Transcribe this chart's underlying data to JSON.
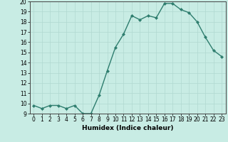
{
  "x": [
    0,
    1,
    2,
    3,
    4,
    5,
    6,
    7,
    8,
    9,
    10,
    11,
    12,
    13,
    14,
    15,
    16,
    17,
    18,
    19,
    20,
    21,
    22,
    23
  ],
  "y": [
    9.8,
    9.5,
    9.8,
    9.8,
    9.5,
    9.8,
    9.0,
    9.0,
    10.8,
    13.2,
    15.5,
    16.8,
    18.6,
    18.2,
    18.6,
    18.4,
    19.8,
    19.8,
    19.2,
    18.9,
    18.0,
    16.5,
    15.2,
    14.6
  ],
  "xlabel": "Humidex (Indice chaleur)",
  "xlim": [
    -0.5,
    23.5
  ],
  "ylim": [
    9,
    20
  ],
  "yticks": [
    9,
    10,
    11,
    12,
    13,
    14,
    15,
    16,
    17,
    18,
    19,
    20
  ],
  "xticks": [
    0,
    1,
    2,
    3,
    4,
    5,
    6,
    7,
    8,
    9,
    10,
    11,
    12,
    13,
    14,
    15,
    16,
    17,
    18,
    19,
    20,
    21,
    22,
    23
  ],
  "line_color": "#2e7d6e",
  "bg_color": "#c8ece4",
  "grid_color": "#b0d8d0",
  "marker_size": 2.0,
  "line_width": 1.0,
  "tick_fontsize": 5.5,
  "xlabel_fontsize": 6.5
}
